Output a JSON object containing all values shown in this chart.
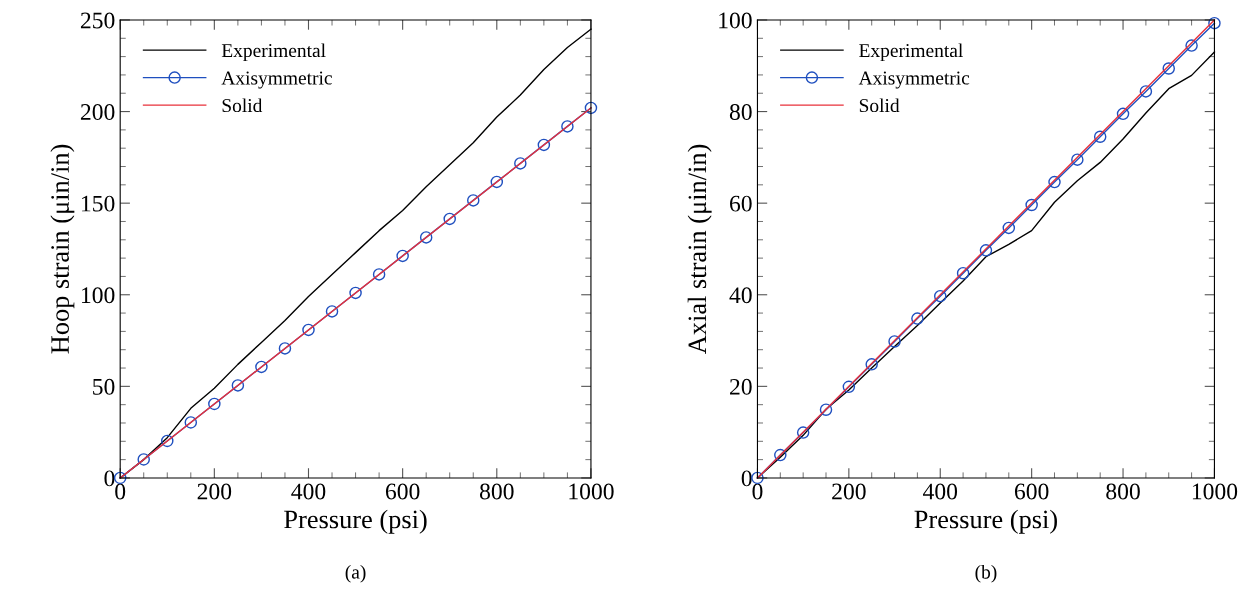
{
  "chart_data": [
    {
      "type": "line",
      "xlabel": "Pressure (psi)",
      "ylabel": "Hoop strain (μin/in)",
      "xlim": [
        0,
        1000
      ],
      "ylim": [
        0,
        250
      ],
      "xticks": [
        0,
        200,
        400,
        600,
        800,
        1000
      ],
      "yticks": [
        0,
        50,
        100,
        150,
        200,
        250
      ],
      "legend": "top left",
      "grid": false,
      "annotations": [
        "(a)"
      ],
      "series": [
        {
          "name": "Experimental",
          "color": "#000000",
          "marker": "none",
          "x": [
            0,
            50,
            100,
            150,
            200,
            250,
            300,
            350,
            400,
            450,
            500,
            550,
            600,
            650,
            700,
            750,
            800,
            850,
            900,
            950,
            1000
          ],
          "values": [
            0,
            10,
            22,
            38,
            49,
            62,
            74,
            86,
            99,
            111,
            123,
            135,
            146,
            159,
            171,
            183,
            197,
            209,
            223,
            235,
            245
          ]
        },
        {
          "name": "Axisymmetric",
          "color": "#1f4fbf",
          "marker": "circle",
          "x": [
            0,
            50,
            100,
            150,
            200,
            250,
            300,
            350,
            400,
            450,
            500,
            550,
            600,
            650,
            700,
            750,
            800,
            850,
            900,
            950,
            1000
          ],
          "values": [
            0,
            10.1,
            20.2,
            30.3,
            40.4,
            50.5,
            60.6,
            70.7,
            80.8,
            90.9,
            101,
            111.1,
            121.2,
            131.3,
            141.4,
            151.5,
            161.6,
            171.7,
            181.8,
            191.9,
            202
          ]
        },
        {
          "name": "Solid",
          "color": "#e8303a",
          "marker": "none",
          "x": [
            0,
            1000
          ],
          "values": [
            0,
            202
          ]
        }
      ]
    },
    {
      "type": "line",
      "xlabel": "Pressure (psi)",
      "ylabel": "Axial strain (μin/in)",
      "xlim": [
        0,
        1000
      ],
      "ylim": [
        0,
        100
      ],
      "xticks": [
        0,
        200,
        400,
        600,
        800,
        1000
      ],
      "yticks": [
        0,
        20,
        40,
        60,
        80,
        100
      ],
      "legend": "top left",
      "grid": false,
      "annotations": [
        "(b)"
      ],
      "series": [
        {
          "name": "Experimental",
          "color": "#000000",
          "marker": "none",
          "x": [
            0,
            50,
            100,
            150,
            200,
            250,
            300,
            350,
            400,
            450,
            500,
            550,
            600,
            650,
            700,
            750,
            800,
            850,
            900,
            950,
            1000
          ],
          "values": [
            0,
            4.5,
            9.3,
            15,
            19.2,
            24,
            28.7,
            33.3,
            38.2,
            43,
            48.3,
            51,
            54,
            60.2,
            64.9,
            68.9,
            74,
            79.7,
            85,
            87.9,
            93
          ]
        },
        {
          "name": "Axisymmetric",
          "color": "#1f4fbf",
          "marker": "circle",
          "x": [
            0,
            50,
            100,
            150,
            200,
            250,
            300,
            350,
            400,
            450,
            500,
            550,
            600,
            650,
            700,
            750,
            800,
            850,
            900,
            950,
            1000
          ],
          "values": [
            0,
            5,
            9.9,
            14.9,
            19.9,
            24.8,
            29.8,
            34.8,
            39.7,
            44.7,
            49.7,
            54.6,
            59.6,
            64.6,
            69.5,
            74.5,
            79.5,
            84.4,
            89.4,
            94.4,
            99.3
          ]
        },
        {
          "name": "Solid",
          "color": "#e8303a",
          "marker": "none",
          "x": [
            0,
            1000
          ],
          "values": [
            0,
            100
          ]
        }
      ]
    }
  ]
}
